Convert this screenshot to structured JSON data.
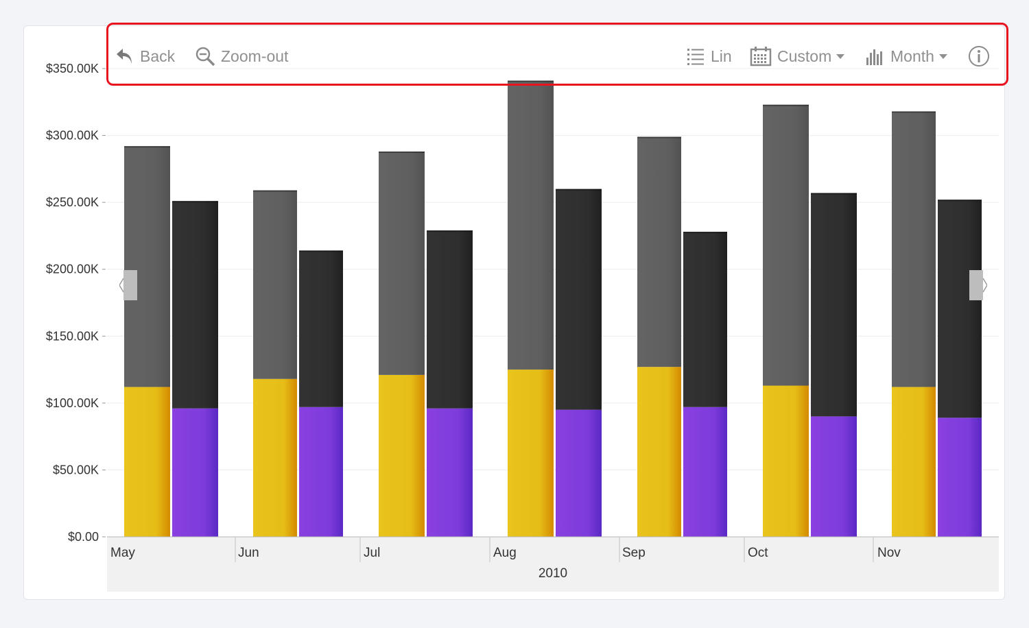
{
  "toolbar": {
    "back_label": "Back",
    "zoom_out_label": "Zoom-out",
    "scale_label": "Lin",
    "period_label": "Custom",
    "interval_label": "Month",
    "icons": [
      "back-arrow-icon",
      "zoom-out-icon",
      "list-icon",
      "calendar-icon",
      "bar-chart-icon",
      "info-icon"
    ]
  },
  "colors": {
    "highlight_border": "#e8131f",
    "series_1_top": "#616161",
    "series_1_bottom": "#e6bf1a",
    "series_2_top": "#303030",
    "series_2_bottom": "#7e3ddb"
  },
  "chart_data": {
    "type": "bar",
    "stacked": true,
    "categories": [
      "May",
      "Jun",
      "Jul",
      "Aug",
      "Sep",
      "Oct",
      "Nov"
    ],
    "x_group_label": "2010",
    "ylim": [
      0,
      350000
    ],
    "y_ticks": [
      "$0.00",
      "$50.00K",
      "$100.00K",
      "$150.00K",
      "$200.00K",
      "$250.00K",
      "$300.00K",
      "$350.00K"
    ],
    "grid": true,
    "bar_groups": [
      {
        "stacks": [
          {
            "bottom": 112000,
            "top": 292000
          },
          {
            "bottom": 96000,
            "top": 251000
          }
        ]
      },
      {
        "stacks": [
          {
            "bottom": 118000,
            "top": 259000
          },
          {
            "bottom": 97000,
            "top": 214000
          }
        ]
      },
      {
        "stacks": [
          {
            "bottom": 121000,
            "top": 288000
          },
          {
            "bottom": 96000,
            "top": 229000
          }
        ]
      },
      {
        "stacks": [
          {
            "bottom": 125000,
            "top": 341000
          },
          {
            "bottom": 95000,
            "top": 260000
          }
        ]
      },
      {
        "stacks": [
          {
            "bottom": 127000,
            "top": 299000
          },
          {
            "bottom": 97000,
            "top": 228000
          }
        ]
      },
      {
        "stacks": [
          {
            "bottom": 113000,
            "top": 323000
          },
          {
            "bottom": 90000,
            "top": 257000
          }
        ]
      },
      {
        "stacks": [
          {
            "bottom": 112000,
            "top": 318000
          },
          {
            "bottom": 89000,
            "top": 252000
          }
        ]
      }
    ]
  }
}
